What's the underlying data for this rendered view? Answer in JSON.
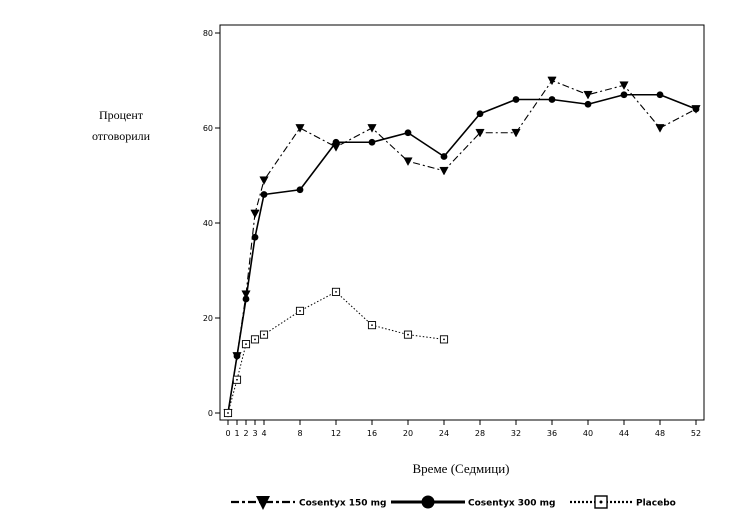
{
  "chart_data": {
    "type": "line",
    "xlabel": "Време (Седмици)",
    "ylabel": [
      "Процент",
      "отговорили"
    ],
    "xlim": [
      0,
      52
    ],
    "ylim": [
      0,
      80
    ],
    "x_ticks": [
      0,
      1,
      2,
      3,
      4,
      8,
      12,
      16,
      20,
      24,
      28,
      32,
      36,
      40,
      44,
      48,
      52
    ],
    "y_ticks": [
      0,
      20,
      40,
      60,
      80
    ],
    "grid": false,
    "legend_position": "bottom",
    "series": [
      {
        "name": "Cosentyx 150 mg",
        "marker": "triangle-down-filled",
        "line": "dash-dot",
        "color": "#000000",
        "x": [
          0,
          1,
          2,
          3,
          4,
          8,
          12,
          16,
          20,
          24,
          28,
          32,
          36,
          40,
          44,
          48,
          52
        ],
        "y": [
          0,
          12,
          25,
          42,
          49,
          60,
          56,
          60,
          53,
          51,
          59,
          59,
          70,
          67,
          69,
          60,
          64
        ]
      },
      {
        "name": "Cosentyx 300 mg",
        "marker": "circle-filled",
        "line": "solid",
        "color": "#000000",
        "x": [
          0,
          1,
          2,
          3,
          4,
          8,
          12,
          16,
          20,
          24,
          28,
          32,
          36,
          40,
          44,
          48,
          52
        ],
        "y": [
          0,
          12,
          24,
          37,
          46,
          47,
          57,
          57,
          59,
          54,
          63,
          66,
          66,
          65,
          67,
          67,
          64
        ]
      },
      {
        "name": "Placebo",
        "marker": "square-open-dot",
        "line": "dotted",
        "color": "#000000",
        "x": [
          0,
          1,
          2,
          3,
          4,
          8,
          12,
          16,
          20,
          24
        ],
        "y": [
          0,
          7,
          14.5,
          15.5,
          16.5,
          21.5,
          25.5,
          18.5,
          16.5,
          15.5
        ]
      }
    ]
  }
}
